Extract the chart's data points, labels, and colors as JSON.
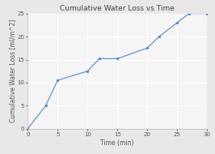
{
  "title": "Cumulative Water Loss vs Time",
  "xlabel": "Time (min)",
  "ylabel": "Cumulative Water Loss [ml/m^2]",
  "x": [
    0,
    3,
    5,
    10,
    12,
    15,
    20,
    22,
    25,
    27,
    30
  ],
  "y": [
    0,
    5,
    10.5,
    12.5,
    15.2,
    15.2,
    17.5,
    20,
    23,
    25,
    25
  ],
  "line_color": "#5588cc",
  "marker_color": "#5588cc",
  "background_color": "#e8e8e8",
  "plot_bg_color": "#f5f5f5",
  "grid_color": "#ffffff",
  "xlim": [
    0,
    30
  ],
  "ylim": [
    0,
    25
  ],
  "xticks": [
    0,
    5,
    10,
    15,
    20,
    25,
    30
  ],
  "yticks": [
    0,
    5,
    10,
    15,
    20,
    25
  ],
  "title_fontsize": 6.5,
  "label_fontsize": 5.5,
  "tick_fontsize": 5
}
